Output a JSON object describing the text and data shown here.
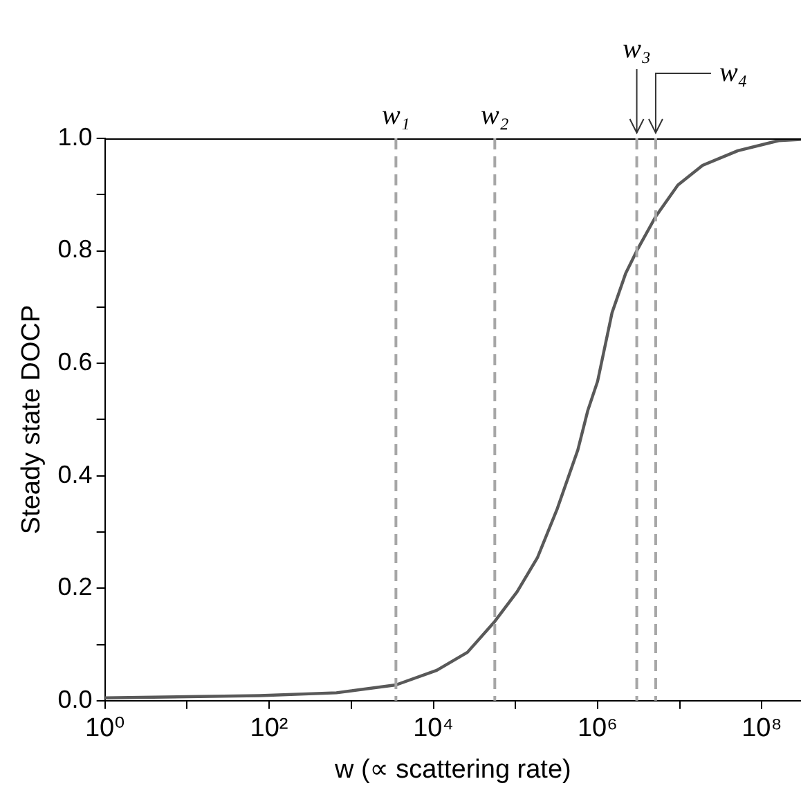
{
  "chart_data": {
    "type": "line",
    "xlabel": "w (∝ scattering rate)",
    "ylabel": "Steady state DOCP",
    "log": "x",
    "grid": false,
    "legend": false,
    "marker": "none",
    "line_style": "solid",
    "xlim": [
      1,
      300000000
    ],
    "xticks": [
      {
        "value": 1,
        "label": "10⁰"
      },
      {
        "value": 10,
        "label": null
      },
      {
        "value": 100,
        "label": "10²"
      },
      {
        "value": 1000,
        "label": null
      },
      {
        "value": 10000,
        "label": "10⁴"
      },
      {
        "value": 100000,
        "label": null
      },
      {
        "value": 1000000,
        "label": "10⁶"
      },
      {
        "value": 10000000,
        "label": null
      },
      {
        "value": 100000000,
        "label": "10⁸"
      }
    ],
    "ylim": [
      0,
      1
    ],
    "yticks": [
      {
        "value": 0,
        "label": "0.0"
      },
      {
        "value": 0.1,
        "label": null
      },
      {
        "value": 0.2,
        "label": "0.2"
      },
      {
        "value": 0.3,
        "label": null
      },
      {
        "value": 0.4,
        "label": "0.4"
      },
      {
        "value": 0.5,
        "label": null
      },
      {
        "value": 0.6,
        "label": "0.6"
      },
      {
        "value": 0.7,
        "label": null
      },
      {
        "value": 0.8,
        "label": "0.8"
      },
      {
        "value": 0.9,
        "label": null
      },
      {
        "value": 1,
        "label": "1.0"
      }
    ],
    "series": [
      {
        "color": "#595959",
        "x": [
          1,
          76,
          660,
          3500,
          11000,
          26000,
          56000,
          105000,
          186000,
          324000,
          575000,
          760000,
          1000000,
          1500000,
          2200000,
          3100000,
          5100000,
          9500000,
          19000000,
          51000000,
          160000000,
          300000000
        ],
        "values": [
          0.005,
          0.009,
          0.014,
          0.028,
          0.054,
          0.086,
          0.141,
          0.194,
          0.255,
          0.342,
          0.446,
          0.516,
          0.568,
          0.69,
          0.76,
          0.804,
          0.861,
          0.917,
          0.952,
          0.978,
          0.996,
          0.998
        ]
      }
    ],
    "ref_lines": [
      {
        "axis": "x",
        "value": 3500,
        "label": "w₁",
        "color": "#a6a6a6",
        "line_style": "dashed"
      },
      {
        "axis": "x",
        "value": 56000,
        "label": "w₂",
        "color": "#a6a6a6",
        "line_style": "dashed"
      },
      {
        "axis": "x",
        "value": 3000000,
        "label": "w₃",
        "color": "#a6a6a6",
        "line_style": "dashed"
      },
      {
        "axis": "x",
        "value": 5100000,
        "label": "w₄",
        "color": "#a6a6a6",
        "line_style": "dashed"
      }
    ]
  }
}
